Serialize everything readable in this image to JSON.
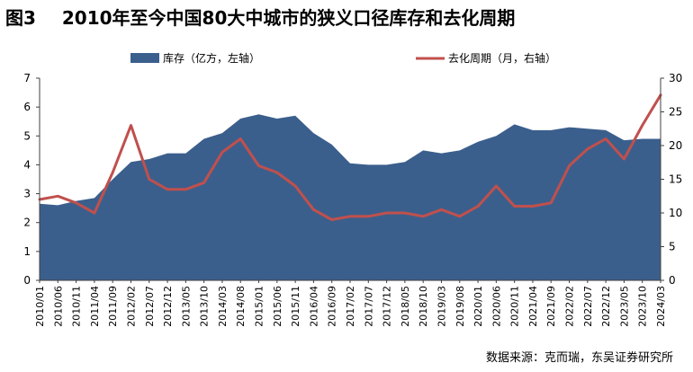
{
  "figure_label": "图3",
  "title": "2010年至今中国80大中城市的狭义口径库存和去化周期",
  "source": "数据来源：克而瑞，东吴证券研究所",
  "colors": {
    "inventory": "#3b5f8c",
    "cycle": "#c0504d",
    "axis": "#404040"
  },
  "chart_data": {
    "type": "area",
    "grid": false,
    "legend_position": "top",
    "x_tick_labels": [
      "2010/01",
      "2010/06",
      "2010/11",
      "2011/04",
      "2011/09",
      "2012/02",
      "2012/07",
      "2012/12",
      "2013/05",
      "2013/10",
      "2014/03",
      "2014/08",
      "2015/01",
      "2015/06",
      "2015/11",
      "2016/04",
      "2016/09",
      "2017/02",
      "2017/07",
      "2017/12",
      "2018/05",
      "2018/10",
      "2019/03",
      "2019/08",
      "2020/01",
      "2020/06",
      "2020/11",
      "2021/04",
      "2021/09",
      "2022/02",
      "2022/07",
      "2022/12",
      "2023/05",
      "2023/10",
      "2024/03"
    ],
    "y_left": {
      "label": "",
      "min": 0,
      "max": 7,
      "ticks": [
        0,
        1,
        2,
        3,
        4,
        5,
        6,
        7
      ]
    },
    "y_right": {
      "label": "",
      "min": 0,
      "max": 30,
      "ticks": [
        0,
        5,
        10,
        15,
        20,
        25,
        30
      ]
    },
    "series": [
      {
        "name": "库存（亿方，左轴）",
        "type": "area",
        "axis": "left",
        "x": [
          "2010/01",
          "2010/06",
          "2010/11",
          "2011/04",
          "2011/09",
          "2012/02",
          "2012/07",
          "2012/12",
          "2013/05",
          "2013/10",
          "2014/03",
          "2014/08",
          "2015/01",
          "2015/06",
          "2015/11",
          "2016/04",
          "2016/09",
          "2017/02",
          "2017/07",
          "2017/12",
          "2018/05",
          "2018/10",
          "2019/03",
          "2019/08",
          "2020/01",
          "2020/06",
          "2020/11",
          "2021/04",
          "2021/09",
          "2022/02",
          "2022/07",
          "2022/12",
          "2023/05",
          "2023/10",
          "2024/03"
        ],
        "values": [
          2.65,
          2.6,
          2.75,
          2.85,
          3.5,
          4.1,
          4.2,
          4.4,
          4.4,
          4.9,
          5.1,
          5.6,
          5.75,
          5.6,
          5.7,
          5.1,
          4.7,
          4.05,
          4.0,
          4.0,
          4.1,
          4.5,
          4.4,
          4.5,
          4.8,
          5.0,
          5.4,
          5.2,
          5.2,
          5.3,
          5.25,
          5.2,
          4.85,
          4.9,
          4.9
        ]
      },
      {
        "name": "去化周期（月，右轴）",
        "type": "line",
        "axis": "right",
        "x": [
          "2010/01",
          "2010/06",
          "2010/11",
          "2011/04",
          "2011/09",
          "2012/02",
          "2012/07",
          "2012/12",
          "2013/05",
          "2013/10",
          "2014/03",
          "2014/08",
          "2015/01",
          "2015/06",
          "2015/11",
          "2016/04",
          "2016/09",
          "2017/02",
          "2017/07",
          "2017/12",
          "2018/05",
          "2018/10",
          "2019/03",
          "2019/08",
          "2020/01",
          "2020/06",
          "2020/11",
          "2021/04",
          "2021/09",
          "2022/02",
          "2022/07",
          "2022/12",
          "2023/05",
          "2023/10",
          "2024/03"
        ],
        "values": [
          12,
          12.5,
          11.5,
          10,
          16,
          23,
          15,
          13.5,
          13.5,
          14.5,
          19,
          21,
          17,
          16,
          14,
          10.5,
          9,
          9.5,
          9.5,
          10,
          10,
          9.5,
          10.5,
          9.5,
          11,
          14,
          11,
          11,
          11.5,
          17,
          19.5,
          21,
          18,
          23,
          27.5
        ]
      }
    ]
  }
}
